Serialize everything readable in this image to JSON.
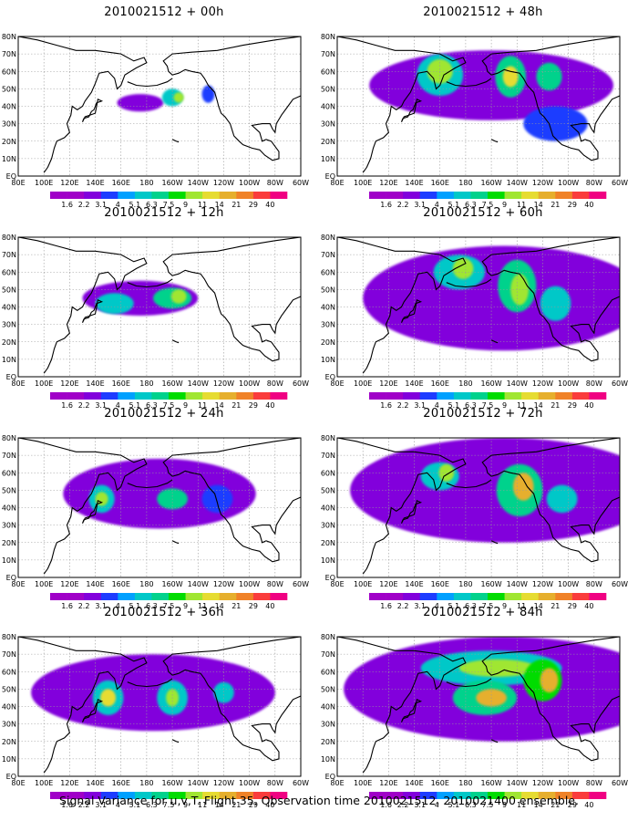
{
  "caption": "Signal Variance for u,v,T. Flight 35. Observation time 2010021512. 2010021400 ensemble.",
  "lat_labels": [
    "80N",
    "70N",
    "60N",
    "50N",
    "40N",
    "30N",
    "20N",
    "10N",
    "EQ"
  ],
  "lon_labels": [
    "80E",
    "100E",
    "120E",
    "140E",
    "160E",
    "180",
    "160W",
    "140W",
    "120W",
    "100W",
    "80W",
    "60W"
  ],
  "colorbar": {
    "levels": [
      "1.6",
      "2.2",
      "3.1",
      "4",
      "5.1",
      "6.3",
      "7.5",
      "9",
      "11",
      "14",
      "21",
      "29",
      "40"
    ],
    "colors": [
      "#a000c8",
      "#8200dc",
      "#1e3cff",
      "#00a0ff",
      "#00c8c8",
      "#00d28c",
      "#00dc00",
      "#a0e632",
      "#e6dc32",
      "#e6af2d",
      "#f08228",
      "#fa3c3c",
      "#f00082"
    ]
  },
  "chart_data": [
    {
      "type": "heatmap",
      "title": "2010021512 + 00h",
      "colorbar_levels": [
        1.6,
        2.2,
        3.1,
        4,
        5.1,
        6.3,
        7.5,
        9,
        11,
        14,
        21,
        29,
        40
      ],
      "x_range": [
        "80E",
        "60W"
      ],
      "y_range": [
        "EQ",
        "80N"
      ],
      "blobs": [
        {
          "lon": 175,
          "lat": 42,
          "rx": 18,
          "ry": 5,
          "level": 1
        },
        {
          "lon": 200,
          "lat": 45,
          "rx": 8,
          "ry": 5,
          "level": 4
        },
        {
          "lon": 205,
          "lat": 45,
          "rx": 4,
          "ry": 3,
          "level": 7
        },
        {
          "lon": 228,
          "lat": 47,
          "rx": 5,
          "ry": 5,
          "level": 2
        }
      ]
    },
    {
      "type": "heatmap",
      "title": "2010021512 + 48h",
      "colorbar_levels": [
        1.6,
        2.2,
        3.1,
        4,
        5.1,
        6.3,
        7.5,
        9,
        11,
        14,
        21,
        29,
        40
      ],
      "x_range": [
        "80E",
        "60W"
      ],
      "y_range": [
        "EQ",
        "80N"
      ],
      "blobs": [
        {
          "lon": 200,
          "lat": 52,
          "rx": 95,
          "ry": 20,
          "level": 1
        },
        {
          "lon": 160,
          "lat": 58,
          "rx": 18,
          "ry": 12,
          "level": 4
        },
        {
          "lon": 160,
          "lat": 60,
          "rx": 10,
          "ry": 7,
          "level": 7
        },
        {
          "lon": 215,
          "lat": 57,
          "rx": 12,
          "ry": 12,
          "level": 5
        },
        {
          "lon": 215,
          "lat": 57,
          "rx": 6,
          "ry": 6,
          "level": 8
        },
        {
          "lon": 245,
          "lat": 57,
          "rx": 10,
          "ry": 8,
          "level": 5
        },
        {
          "lon": 250,
          "lat": 30,
          "rx": 25,
          "ry": 10,
          "level": 2
        }
      ]
    },
    {
      "type": "heatmap",
      "title": "2010021512 + 12h",
      "colorbar_levels": [
        1.6,
        2.2,
        3.1,
        4,
        5.1,
        6.3,
        7.5,
        9,
        11,
        14,
        21,
        29,
        40
      ],
      "x_range": [
        "80E",
        "60W"
      ],
      "y_range": [
        "EQ",
        "80N"
      ],
      "blobs": [
        {
          "lon": 175,
          "lat": 45,
          "rx": 45,
          "ry": 10,
          "level": 1
        },
        {
          "lon": 155,
          "lat": 42,
          "rx": 15,
          "ry": 6,
          "level": 4
        },
        {
          "lon": 200,
          "lat": 45,
          "rx": 15,
          "ry": 6,
          "level": 5
        },
        {
          "lon": 205,
          "lat": 46,
          "rx": 6,
          "ry": 4,
          "level": 7
        }
      ]
    },
    {
      "type": "heatmap",
      "title": "2010021512 + 60h",
      "colorbar_levels": [
        1.6,
        2.2,
        3.1,
        4,
        5.1,
        6.3,
        7.5,
        9,
        11,
        14,
        21,
        29,
        40
      ],
      "x_range": [
        "80E",
        "60W"
      ],
      "y_range": [
        "EQ",
        "80N"
      ],
      "blobs": [
        {
          "lon": 210,
          "lat": 45,
          "rx": 110,
          "ry": 30,
          "level": 1
        },
        {
          "lon": 175,
          "lat": 60,
          "rx": 20,
          "ry": 10,
          "level": 4
        },
        {
          "lon": 178,
          "lat": 62,
          "rx": 8,
          "ry": 6,
          "level": 7
        },
        {
          "lon": 220,
          "lat": 52,
          "rx": 15,
          "ry": 15,
          "level": 5
        },
        {
          "lon": 222,
          "lat": 50,
          "rx": 7,
          "ry": 9,
          "level": 7
        },
        {
          "lon": 250,
          "lat": 42,
          "rx": 12,
          "ry": 10,
          "level": 4
        }
      ]
    },
    {
      "type": "heatmap",
      "title": "2010021512 + 24h",
      "colorbar_levels": [
        1.6,
        2.2,
        3.1,
        4,
        5.1,
        6.3,
        7.5,
        9,
        11,
        14,
        21,
        29,
        40
      ],
      "x_range": [
        "80E",
        "60W"
      ],
      "y_range": [
        "EQ",
        "80N"
      ],
      "blobs": [
        {
          "lon": 190,
          "lat": 48,
          "rx": 75,
          "ry": 20,
          "level": 1
        },
        {
          "lon": 145,
          "lat": 45,
          "rx": 10,
          "ry": 8,
          "level": 4
        },
        {
          "lon": 145,
          "lat": 45,
          "rx": 5,
          "ry": 4,
          "level": 7
        },
        {
          "lon": 200,
          "lat": 45,
          "rx": 12,
          "ry": 6,
          "level": 5
        },
        {
          "lon": 235,
          "lat": 45,
          "rx": 12,
          "ry": 8,
          "level": 2
        }
      ]
    },
    {
      "type": "heatmap",
      "title": "2010021512 + 72h",
      "colorbar_levels": [
        1.6,
        2.2,
        3.1,
        4,
        5.1,
        6.3,
        7.5,
        9,
        11,
        14,
        21,
        29,
        40
      ],
      "x_range": [
        "80E",
        "60W"
      ],
      "y_range": [
        "EQ",
        "80N"
      ],
      "blobs": [
        {
          "lon": 210,
          "lat": 50,
          "rx": 120,
          "ry": 30,
          "level": 1
        },
        {
          "lon": 160,
          "lat": 58,
          "rx": 15,
          "ry": 8,
          "level": 4
        },
        {
          "lon": 165,
          "lat": 60,
          "rx": 6,
          "ry": 5,
          "level": 7
        },
        {
          "lon": 222,
          "lat": 50,
          "rx": 18,
          "ry": 15,
          "level": 5
        },
        {
          "lon": 225,
          "lat": 52,
          "rx": 8,
          "ry": 8,
          "level": 9
        },
        {
          "lon": 255,
          "lat": 45,
          "rx": 12,
          "ry": 8,
          "level": 4
        }
      ]
    },
    {
      "type": "heatmap",
      "title": "2010021512 + 36h",
      "colorbar_levels": [
        1.6,
        2.2,
        3.1,
        4,
        5.1,
        6.3,
        7.5,
        9,
        11,
        14,
        21,
        29,
        40
      ],
      "x_range": [
        "80E",
        "60W"
      ],
      "y_range": [
        "EQ",
        "80N"
      ],
      "blobs": [
        {
          "lon": 185,
          "lat": 48,
          "rx": 95,
          "ry": 22,
          "level": 1
        },
        {
          "lon": 150,
          "lat": 45,
          "rx": 12,
          "ry": 10,
          "level": 4
        },
        {
          "lon": 150,
          "lat": 45,
          "rx": 6,
          "ry": 5,
          "level": 8
        },
        {
          "lon": 200,
          "lat": 45,
          "rx": 12,
          "ry": 10,
          "level": 4
        },
        {
          "lon": 200,
          "lat": 45,
          "rx": 5,
          "ry": 5,
          "level": 7
        },
        {
          "lon": 240,
          "lat": 48,
          "rx": 8,
          "ry": 6,
          "level": 4
        }
      ]
    },
    {
      "type": "heatmap",
      "title": "2010021512 + 84h",
      "colorbar_levels": [
        1.6,
        2.2,
        3.1,
        4,
        5.1,
        6.3,
        7.5,
        9,
        11,
        14,
        21,
        29,
        40
      ],
      "x_range": [
        "80E",
        "60W"
      ],
      "y_range": [
        "EQ",
        "80N"
      ],
      "blobs": [
        {
          "lon": 210,
          "lat": 50,
          "rx": 125,
          "ry": 30,
          "level": 1
        },
        {
          "lon": 200,
          "lat": 62,
          "rx": 55,
          "ry": 10,
          "level": 4
        },
        {
          "lon": 205,
          "lat": 62,
          "rx": 30,
          "ry": 5,
          "level": 7
        },
        {
          "lon": 195,
          "lat": 45,
          "rx": 25,
          "ry": 10,
          "level": 5
        },
        {
          "lon": 200,
          "lat": 45,
          "rx": 12,
          "ry": 5,
          "level": 9
        },
        {
          "lon": 240,
          "lat": 55,
          "rx": 15,
          "ry": 12,
          "level": 6
        },
        {
          "lon": 245,
          "lat": 55,
          "rx": 7,
          "ry": 7,
          "level": 9
        }
      ]
    }
  ]
}
